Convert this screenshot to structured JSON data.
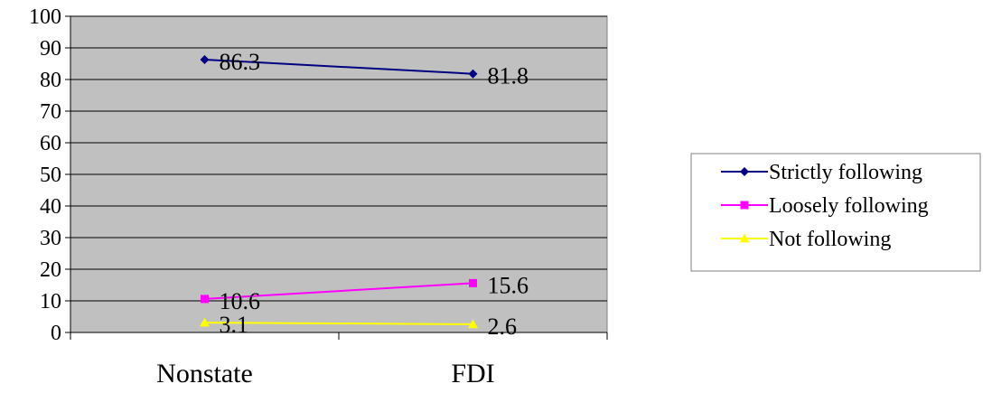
{
  "chart_data": {
    "type": "line",
    "categories": [
      "Nonstate",
      "FDI"
    ],
    "series": [
      {
        "name": "Strictly following",
        "values": [
          86.3,
          81.8
        ],
        "labels": [
          "86.3",
          "81.8"
        ],
        "color": "#000080",
        "marker": "diamond"
      },
      {
        "name": "Loosely following",
        "values": [
          10.6,
          15.6
        ],
        "labels": [
          "10.6",
          "15.6"
        ],
        "color": "#ff00ff",
        "marker": "square"
      },
      {
        "name": "Not following",
        "values": [
          3.1,
          2.6
        ],
        "labels": [
          "3.1",
          "2.6"
        ],
        "color": "#ffff00",
        "marker": "triangle"
      }
    ],
    "yticks": [
      "0",
      "10",
      "20",
      "30",
      "40",
      "50",
      "60",
      "70",
      "80",
      "90",
      "100"
    ],
    "ylim": [
      0,
      100
    ],
    "grid": true,
    "plot_background": "#c0c0c0",
    "legend": "right"
  }
}
